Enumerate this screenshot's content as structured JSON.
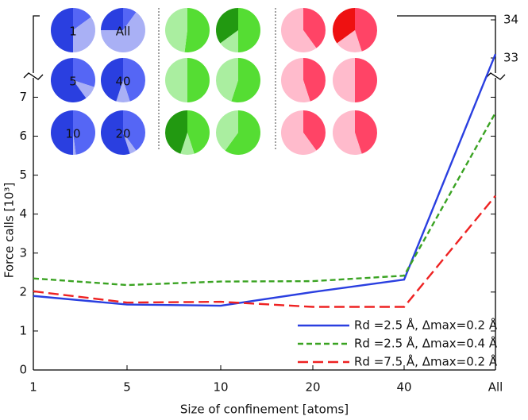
{
  "chart_data": {
    "type": "line",
    "x_label": "Size of confinement [atoms]",
    "y_label": "Force calls [10³]",
    "categories": [
      "1",
      "5",
      "10",
      "20",
      "40",
      "All"
    ],
    "ylim": [
      0,
      7.6
    ],
    "yticks": [
      0,
      1,
      2,
      3,
      4,
      5,
      6,
      7
    ],
    "y2lim": [
      32.5,
      34.3
    ],
    "y2ticks": [
      33,
      34
    ],
    "y2_color": "#3344dd",
    "series": [
      {
        "name": "Rd =2.5 Å,  Δmax=0.2 Å",
        "color": "#2a3fe0",
        "dash": "none",
        "values": [
          1.9,
          1.68,
          1.65,
          2.0,
          2.32,
          33.1
        ]
      },
      {
        "name": "Rd =2.5 Å,  Δmax=0.4 Å",
        "color": "#3aa322",
        "dash": "7,4",
        "values": [
          2.35,
          2.18,
          2.27,
          2.28,
          2.42,
          6.6
        ]
      },
      {
        "name": "Rd =7.5 Å,  Δmax=0.2 Å",
        "color": "#ee2222",
        "dash": "13,6",
        "values": [
          2.02,
          1.73,
          1.75,
          1.62,
          1.62,
          4.47
        ]
      }
    ],
    "insets": [
      {
        "colors": [
          "#5566f5",
          "#a9b0f5",
          "#2a3fe0"
        ],
        "pies": [
          {
            "label": "1",
            "slices": [
              15,
              35,
              50
            ]
          },
          {
            "label": "All",
            "slices": [
              10,
              65,
              25
            ]
          },
          {
            "label": "5",
            "slices": [
              30,
              10,
              60
            ]
          },
          {
            "label": "40",
            "slices": [
              45,
              10,
              45
            ]
          },
          {
            "label": "10",
            "slices": [
              48,
              2,
              50
            ]
          },
          {
            "label": "20",
            "slices": [
              40,
              5,
              55
            ]
          }
        ]
      },
      {
        "colors": [
          "#55dd33",
          "#aaeea0",
          "#229911"
        ],
        "pies": [
          {
            "slices": [
              52,
              48
            ]
          },
          {
            "slices": [
              50,
              15,
              35
            ]
          },
          {
            "slices": [
              50,
              50
            ]
          },
          {
            "slices": [
              55,
              45
            ]
          },
          {
            "slices": [
              45,
              10,
              45
            ]
          },
          {
            "slices": [
              60,
              40
            ]
          }
        ]
      },
      {
        "colors": [
          "#ff4466",
          "#ffbbcc",
          "#ee1111"
        ],
        "pies": [
          {
            "slices": [
              40,
              60
            ]
          },
          {
            "slices": [
              45,
              20,
              35
            ]
          },
          {
            "slices": [
              45,
              55
            ]
          },
          {
            "slices": [
              50,
              50
            ]
          },
          {
            "slices": [
              40,
              60
            ]
          },
          {
            "slices": [
              45,
              55
            ]
          }
        ]
      }
    ]
  }
}
